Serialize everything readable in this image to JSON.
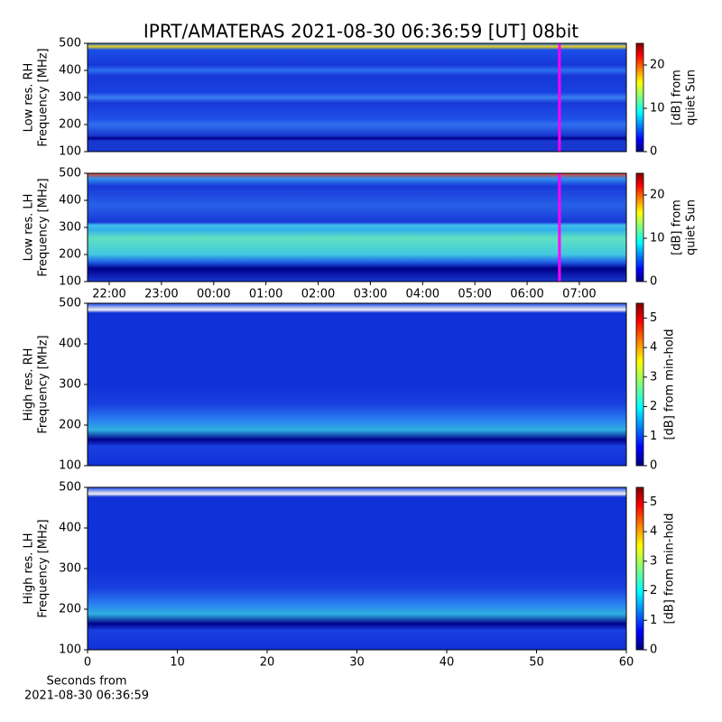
{
  "title": "IPRT/AMATERAS 2021-08-30 06:36:59 [UT]   08bit",
  "chart_data": [
    {
      "type": "heatmap",
      "y_label": [
        "Low res. RH",
        "Frequency [MHz]"
      ],
      "ylim": [
        100,
        500
      ],
      "yticks": [
        100,
        200,
        300,
        400,
        500
      ],
      "xlim": [
        21.585,
        31.9
      ],
      "marker_x": 30.62,
      "marker_color": "#ff00ff",
      "colormap": "jet",
      "clim": [
        0,
        25
      ],
      "cticks": [
        0,
        10,
        20
      ],
      "colorbar_label": [
        "[dB] from",
        "quiet Sun"
      ]
    },
    {
      "type": "heatmap",
      "y_label": [
        "Low res. LH",
        "Frequency [MHz]"
      ],
      "ylim": [
        100,
        500
      ],
      "yticks": [
        100,
        200,
        300,
        400,
        500
      ],
      "xlim": [
        21.585,
        31.9
      ],
      "marker_x": 30.62,
      "marker_color": "#ff00ff",
      "xticks": [
        {
          "value": 22,
          "label": "22:00"
        },
        {
          "value": 23,
          "label": "23:00"
        },
        {
          "value": 24,
          "label": "00:00"
        },
        {
          "value": 25,
          "label": "01:00"
        },
        {
          "value": 26,
          "label": "02:00"
        },
        {
          "value": 27,
          "label": "03:00"
        },
        {
          "value": 28,
          "label": "04:00"
        },
        {
          "value": 29,
          "label": "05:00"
        },
        {
          "value": 30,
          "label": "06:00"
        },
        {
          "value": 31,
          "label": "07:00"
        }
      ],
      "colormap": "jet",
      "clim": [
        0,
        25
      ],
      "cticks": [
        0,
        10,
        20
      ],
      "colorbar_label": [
        "[dB] from",
        "quiet Sun"
      ]
    },
    {
      "type": "heatmap",
      "y_label": [
        "High res. RH",
        "Frequency [MHz]"
      ],
      "ylim": [
        100,
        500
      ],
      "yticks": [
        100,
        200,
        300,
        400,
        500
      ],
      "xlim": [
        0,
        60
      ],
      "colormap": "jet",
      "clim": [
        0,
        5.5
      ],
      "cticks": [
        0,
        1,
        2,
        3,
        4,
        5
      ],
      "colorbar_label": [
        "[dB] from min-hold"
      ]
    },
    {
      "type": "heatmap",
      "y_label": [
        "High res. LH",
        "Frequency [MHz]"
      ],
      "ylim": [
        100,
        500
      ],
      "yticks": [
        100,
        200,
        300,
        400,
        500
      ],
      "xlim": [
        0,
        60
      ],
      "xticks": [
        0,
        10,
        20,
        30,
        40,
        50,
        60
      ],
      "x_label": [
        "Seconds from",
        "2021-08-30 06:36:59"
      ],
      "colormap": "jet",
      "clim": [
        0,
        5.5
      ],
      "cticks": [
        0,
        1,
        2,
        3,
        4,
        5
      ],
      "colorbar_label": [
        "[dB] from min-hold"
      ]
    }
  ]
}
